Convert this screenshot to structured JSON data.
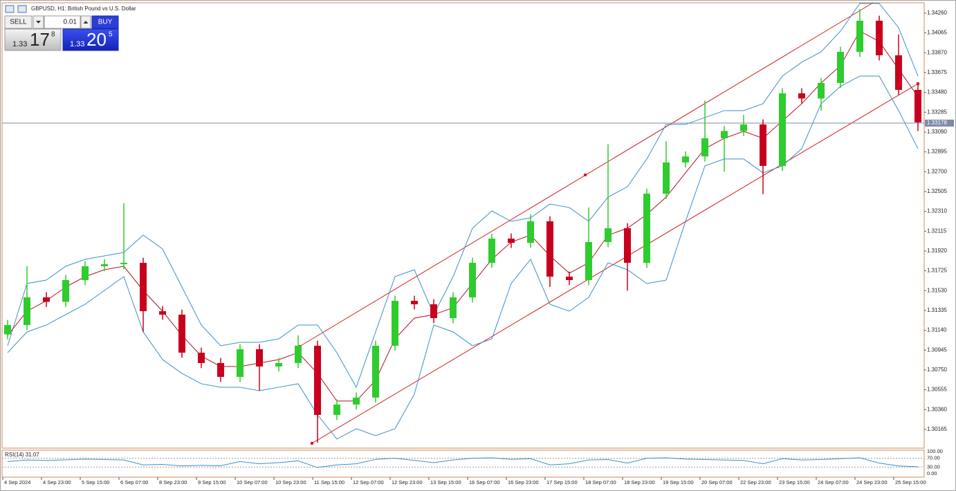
{
  "toolbar": {
    "title": "GBPUSD, H1: British Pound vs U.S. Dollar"
  },
  "trade_panel": {
    "sell": "SELL",
    "lot": "0.01",
    "buy": "BUY",
    "bid": {
      "big": "1.33",
      "main": "17",
      "sup": "8"
    },
    "ask": {
      "big": "1.33",
      "main": "20",
      "sup": "5"
    }
  },
  "chart_data": [
    {
      "type": "candlestick",
      "categories": [
        "4 Sep 2024",
        null,
        "4 Sep 23:00",
        null,
        "5 Sep 15:00",
        null,
        "6 Sep 07:00",
        null,
        "8 Sep 23:00",
        null,
        "9 Sep 15:00",
        null,
        "10 Sep 07:00",
        null,
        "10 Sep 23:00",
        null,
        "11 Sep 15:00",
        null,
        "12 Sep 07:00",
        null,
        "12 Sep 23:00",
        null,
        "13 Sep 15:00",
        null,
        "16 Sep 07:00",
        null,
        "16 Sep 23:00",
        null,
        "17 Sep 15:00",
        null,
        "18 Sep 07:00",
        null,
        "18 Sep 23:00",
        null,
        "19 Sep 15:00",
        null,
        "20 Sep 07:00",
        null,
        "22 Sep 23:00",
        null,
        "23 Sep 15:00",
        null,
        "24 Sep 07:00",
        null,
        "24 Sep 23:00",
        null,
        "25 Sep 15:00",
        null
      ],
      "open": [
        1.311,
        1.31192,
        1.31464,
        1.3142,
        1.31634,
        1.3177,
        1.3179,
        1.31804,
        1.31328,
        1.31294,
        1.3092,
        1.30818,
        1.30682,
        1.30954,
        1.30784,
        1.30818,
        1.30988,
        1.30308,
        1.3041,
        1.30478,
        1.30988,
        1.3143,
        1.31396,
        1.3126,
        1.31464,
        1.31804,
        1.32042,
        1.32,
        1.32212,
        1.31668,
        1.31634,
        1.32008,
        1.32144,
        1.31804,
        1.32484,
        1.32791,
        1.3285,
        1.33029,
        1.331,
        1.33165,
        1.32757,
        1.33471,
        1.3342,
        1.33573,
        1.33879,
        1.34185,
        1.33845,
        1.33505
      ],
      "high": [
        1.31242,
        1.3177,
        1.31514,
        1.31684,
        1.3182,
        1.3184,
        1.3239,
        1.31854,
        1.31378,
        1.31344,
        1.3097,
        1.30868,
        1.31004,
        1.31004,
        1.30868,
        1.3109,
        1.31038,
        1.3046,
        1.30528,
        1.31038,
        1.3148,
        1.3148,
        1.31446,
        1.31514,
        1.31854,
        1.32092,
        1.32092,
        1.3228,
        1.32262,
        1.31718,
        1.32348,
        1.3297,
        1.32194,
        1.32534,
        1.33,
        1.329,
        1.334,
        1.3315,
        1.3326,
        1.33215,
        1.33521,
        1.33521,
        1.33623,
        1.33929,
        1.343,
        1.34235,
        1.3405,
        1.33555
      ],
      "low": [
        1.3105,
        1.31142,
        1.3137,
        1.3137,
        1.31584,
        1.3172,
        1.3174,
        1.31124,
        1.31244,
        1.3087,
        1.30768,
        1.30632,
        1.30632,
        1.30546,
        1.30734,
        1.30768,
        1.30035,
        1.30258,
        1.3036,
        1.30428,
        1.30938,
        1.31346,
        1.3121,
        1.3121,
        1.31414,
        1.31754,
        1.3195,
        1.3195,
        1.31566,
        1.31584,
        1.31584,
        1.31958,
        1.3153,
        1.31754,
        1.32434,
        1.32741,
        1.328,
        1.327,
        1.3305,
        1.3248,
        1.32707,
        1.3337,
        1.333,
        1.33523,
        1.33829,
        1.33795,
        1.33455,
        1.331
      ],
      "close": [
        1.31192,
        1.31464,
        1.3142,
        1.31634,
        1.3177,
        1.3179,
        1.31804,
        1.31328,
        1.31294,
        1.3092,
        1.30818,
        1.30682,
        1.30954,
        1.30784,
        1.30818,
        1.30988,
        1.30308,
        1.3041,
        1.30478,
        1.30988,
        1.3143,
        1.31396,
        1.3126,
        1.31464,
        1.31804,
        1.32042,
        1.32,
        1.32212,
        1.31668,
        1.31634,
        1.32008,
        1.32144,
        1.31804,
        1.32484,
        1.32791,
        1.3285,
        1.33029,
        1.331,
        1.33165,
        1.32757,
        1.33471,
        1.3342,
        1.33573,
        1.33879,
        1.34185,
        1.33845,
        1.33505,
        1.33185
      ],
      "up_color": "#2ecc2e",
      "down_color": "#c8001e",
      "overlays": [
        {
          "color": "#3a8fc8",
          "values": [
            1.30988,
            1.316,
            1.31634,
            1.3177,
            1.31838,
            1.31872,
            1.31906,
            1.32076,
            1.3194,
            1.31566,
            1.31192,
            1.30988,
            1.31022,
            1.31022,
            1.31056,
            1.31192,
            1.31192,
            1.3092,
            1.3058,
            1.31124,
            1.31668,
            1.31736,
            1.31294,
            1.31668,
            1.32144,
            1.32314,
            1.32212,
            1.32246,
            1.32382,
            1.32348,
            1.32212,
            1.3245,
            1.32553,
            1.32825,
            1.33165,
            1.33165,
            1.33233,
            1.33301,
            1.33301,
            1.33369,
            1.33641,
            1.33777,
            1.33879,
            1.34083,
            1.34355,
            1.34355,
            1.34117,
            1.33641
          ]
        },
        {
          "color": "#3a8fc8",
          "values": [
            1.3092,
            1.31124,
            1.31192,
            1.31294,
            1.31396,
            1.31532,
            1.31668,
            1.31124,
            1.30852,
            1.30716,
            1.30614,
            1.3058,
            1.3058,
            1.30546,
            1.3058,
            1.30614,
            1.30308,
            1.3007,
            1.30172,
            1.30104,
            1.30172,
            1.30512,
            1.31192,
            1.31124,
            1.30988,
            1.31056,
            1.316,
            1.31838,
            1.31396,
            1.31328,
            1.31464,
            1.31804,
            1.31736,
            1.316,
            1.31634,
            1.32212,
            1.32757,
            1.32825,
            1.32825,
            1.32689,
            1.32757,
            1.32927,
            1.33369,
            1.33539,
            1.33641,
            1.33641,
            1.33301,
            1.32927
          ]
        },
        {
          "color": "#b01020",
          "values": [
            1.3109,
            1.31328,
            1.3143,
            1.31566,
            1.31668,
            1.31736,
            1.3177,
            1.31532,
            1.31328,
            1.3109,
            1.30886,
            1.30784,
            1.30784,
            1.30818,
            1.30852,
            1.3092,
            1.30716,
            1.30444,
            1.30444,
            1.30648,
            1.31056,
            1.3126,
            1.31294,
            1.31362,
            1.316,
            1.31838,
            1.32008,
            1.32076,
            1.31872,
            1.31702,
            1.31804,
            1.32076,
            1.32144,
            1.3228,
            1.3245,
            1.32689,
            1.32927,
            1.33029,
            1.33097,
            1.33029,
            1.33199,
            1.33369,
            1.33573,
            1.33743,
            1.34083,
            1.33981,
            1.33709,
            1.33437
          ]
        }
      ],
      "current_price": {
        "value": 1.33178,
        "label": "1.33178"
      },
      "ylim": [
        1.29981,
        1.34355
      ],
      "yticks": [
        {
          "value": 1.3426,
          "label": "1.34260"
        },
        {
          "value": 1.34065,
          "label": "1.34065"
        },
        {
          "value": 1.3387,
          "label": "1.33870"
        },
        {
          "value": 1.33675,
          "label": "1.33675"
        },
        {
          "value": 1.3348,
          "label": "1.33480"
        },
        {
          "value": 1.33285,
          "label": "1.33285"
        },
        {
          "value": 1.3309,
          "label": "1.33090"
        },
        {
          "value": 1.32895,
          "label": "1.32895"
        },
        {
          "value": 1.327,
          "label": "1.32700"
        },
        {
          "value": 1.32505,
          "label": "1.32505"
        },
        {
          "value": 1.3231,
          "label": "1.32310"
        },
        {
          "value": 1.32115,
          "label": "1.32115"
        },
        {
          "value": 1.3192,
          "label": "1.31920"
        },
        {
          "value": 1.31725,
          "label": "1.31725"
        },
        {
          "value": 1.3153,
          "label": "1.31530"
        },
        {
          "value": 1.31335,
          "label": "1.31335"
        },
        {
          "value": 1.3114,
          "label": "1.31140"
        },
        {
          "value": 1.30945,
          "label": "1.30945"
        },
        {
          "value": 1.3075,
          "label": "1.30750"
        },
        {
          "value": 1.30555,
          "label": "1.30555"
        },
        {
          "value": 1.3036,
          "label": "1.30360"
        },
        {
          "value": 1.30165,
          "label": "1.30165"
        }
      ]
    },
    {
      "type": "line",
      "title": "RSI(14) 31.07",
      "color": "#3a8fc8",
      "values": [
        55,
        62,
        60,
        63,
        66,
        64,
        62,
        40,
        42,
        35,
        38,
        36,
        55,
        45,
        50,
        58,
        28,
        40,
        45,
        65,
        70,
        60,
        50,
        62,
        70,
        72,
        65,
        68,
        40,
        45,
        62,
        64,
        48,
        70,
        72,
        66,
        64,
        62,
        60,
        45,
        68,
        62,
        64,
        68,
        72,
        48,
        35,
        31.07
      ],
      "ylim": [
        0,
        100
      ],
      "yticks": [
        {
          "value": 100,
          "label": "100.00"
        },
        {
          "value": 70,
          "label": "70.00"
        },
        {
          "value": 30,
          "label": "30.00"
        },
        {
          "value": 0,
          "label": "0.00"
        }
      ]
    }
  ]
}
